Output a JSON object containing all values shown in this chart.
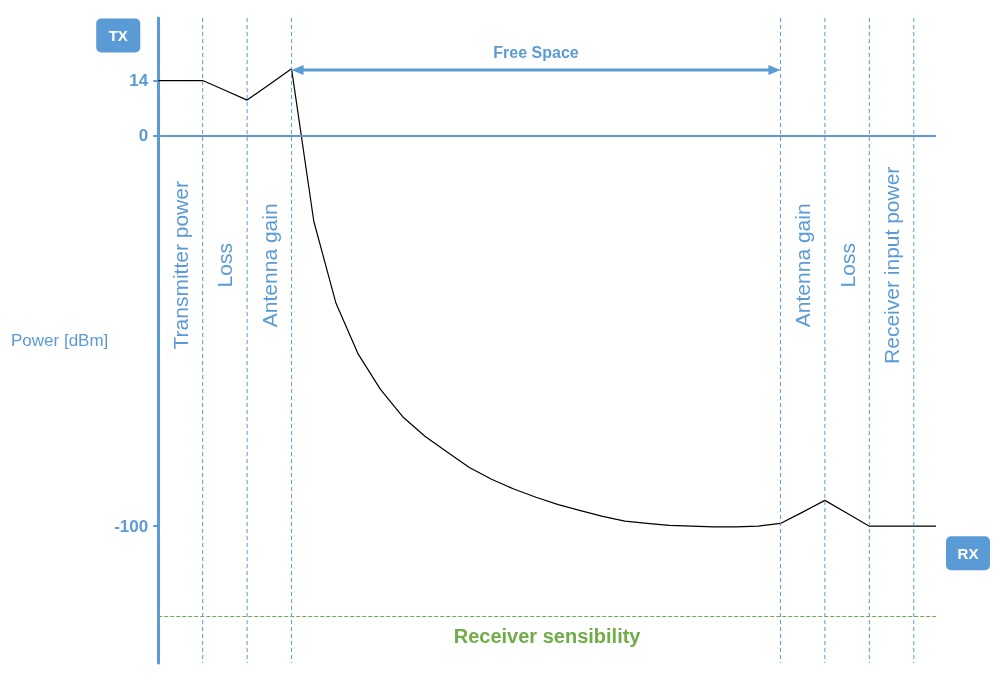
{
  "chart_data": {
    "type": "line",
    "ylabel": "Power [dBm]",
    "categories": [
      null,
      null,
      null,
      null,
      null,
      null,
      null,
      null,
      null,
      null,
      null,
      null,
      null,
      null,
      null,
      null,
      null,
      null,
      null,
      null,
      null,
      null,
      null,
      null,
      null,
      null,
      null,
      null,
      null,
      null,
      null,
      null,
      null,
      null,
      null,
      null
    ],
    "ylim": [
      -135,
      30
    ],
    "yticks": [
      14,
      0,
      -100
    ],
    "tick_labels": "y",
    "series": [
      {
        "color": "#000000",
        "values": [
          14,
          14,
          14,
          11.5,
          9,
          13,
          17,
          -22,
          -43,
          -56,
          -65,
          -72,
          -77,
          -81,
          -85,
          -88,
          -90.5,
          -92.6,
          -94.5,
          -96,
          -97.5,
          -98.7,
          -99.3,
          -99.8,
          -100,
          -100.2,
          -100.2,
          -100,
          -99.3,
          -96.4,
          -93.4,
          -96.7,
          -100,
          -100,
          -100,
          -100
        ]
      }
    ],
    "ref_lines": [
      {
        "axis": "y",
        "value": 0,
        "line_style": "solid",
        "color": "#5b9bd5"
      },
      {
        "axis": "y",
        "value": -123,
        "label": "Receiver sensibility",
        "color": "#70ad47"
      }
    ],
    "annotations": [
      "Transmitter power",
      "Loss",
      "Antenna gain",
      "Free Space",
      "Antenna gain",
      "Loss",
      "Receiver input power",
      "TX",
      "RX"
    ],
    "grid": "x",
    "marker": "none",
    "line_style": "solid"
  }
}
